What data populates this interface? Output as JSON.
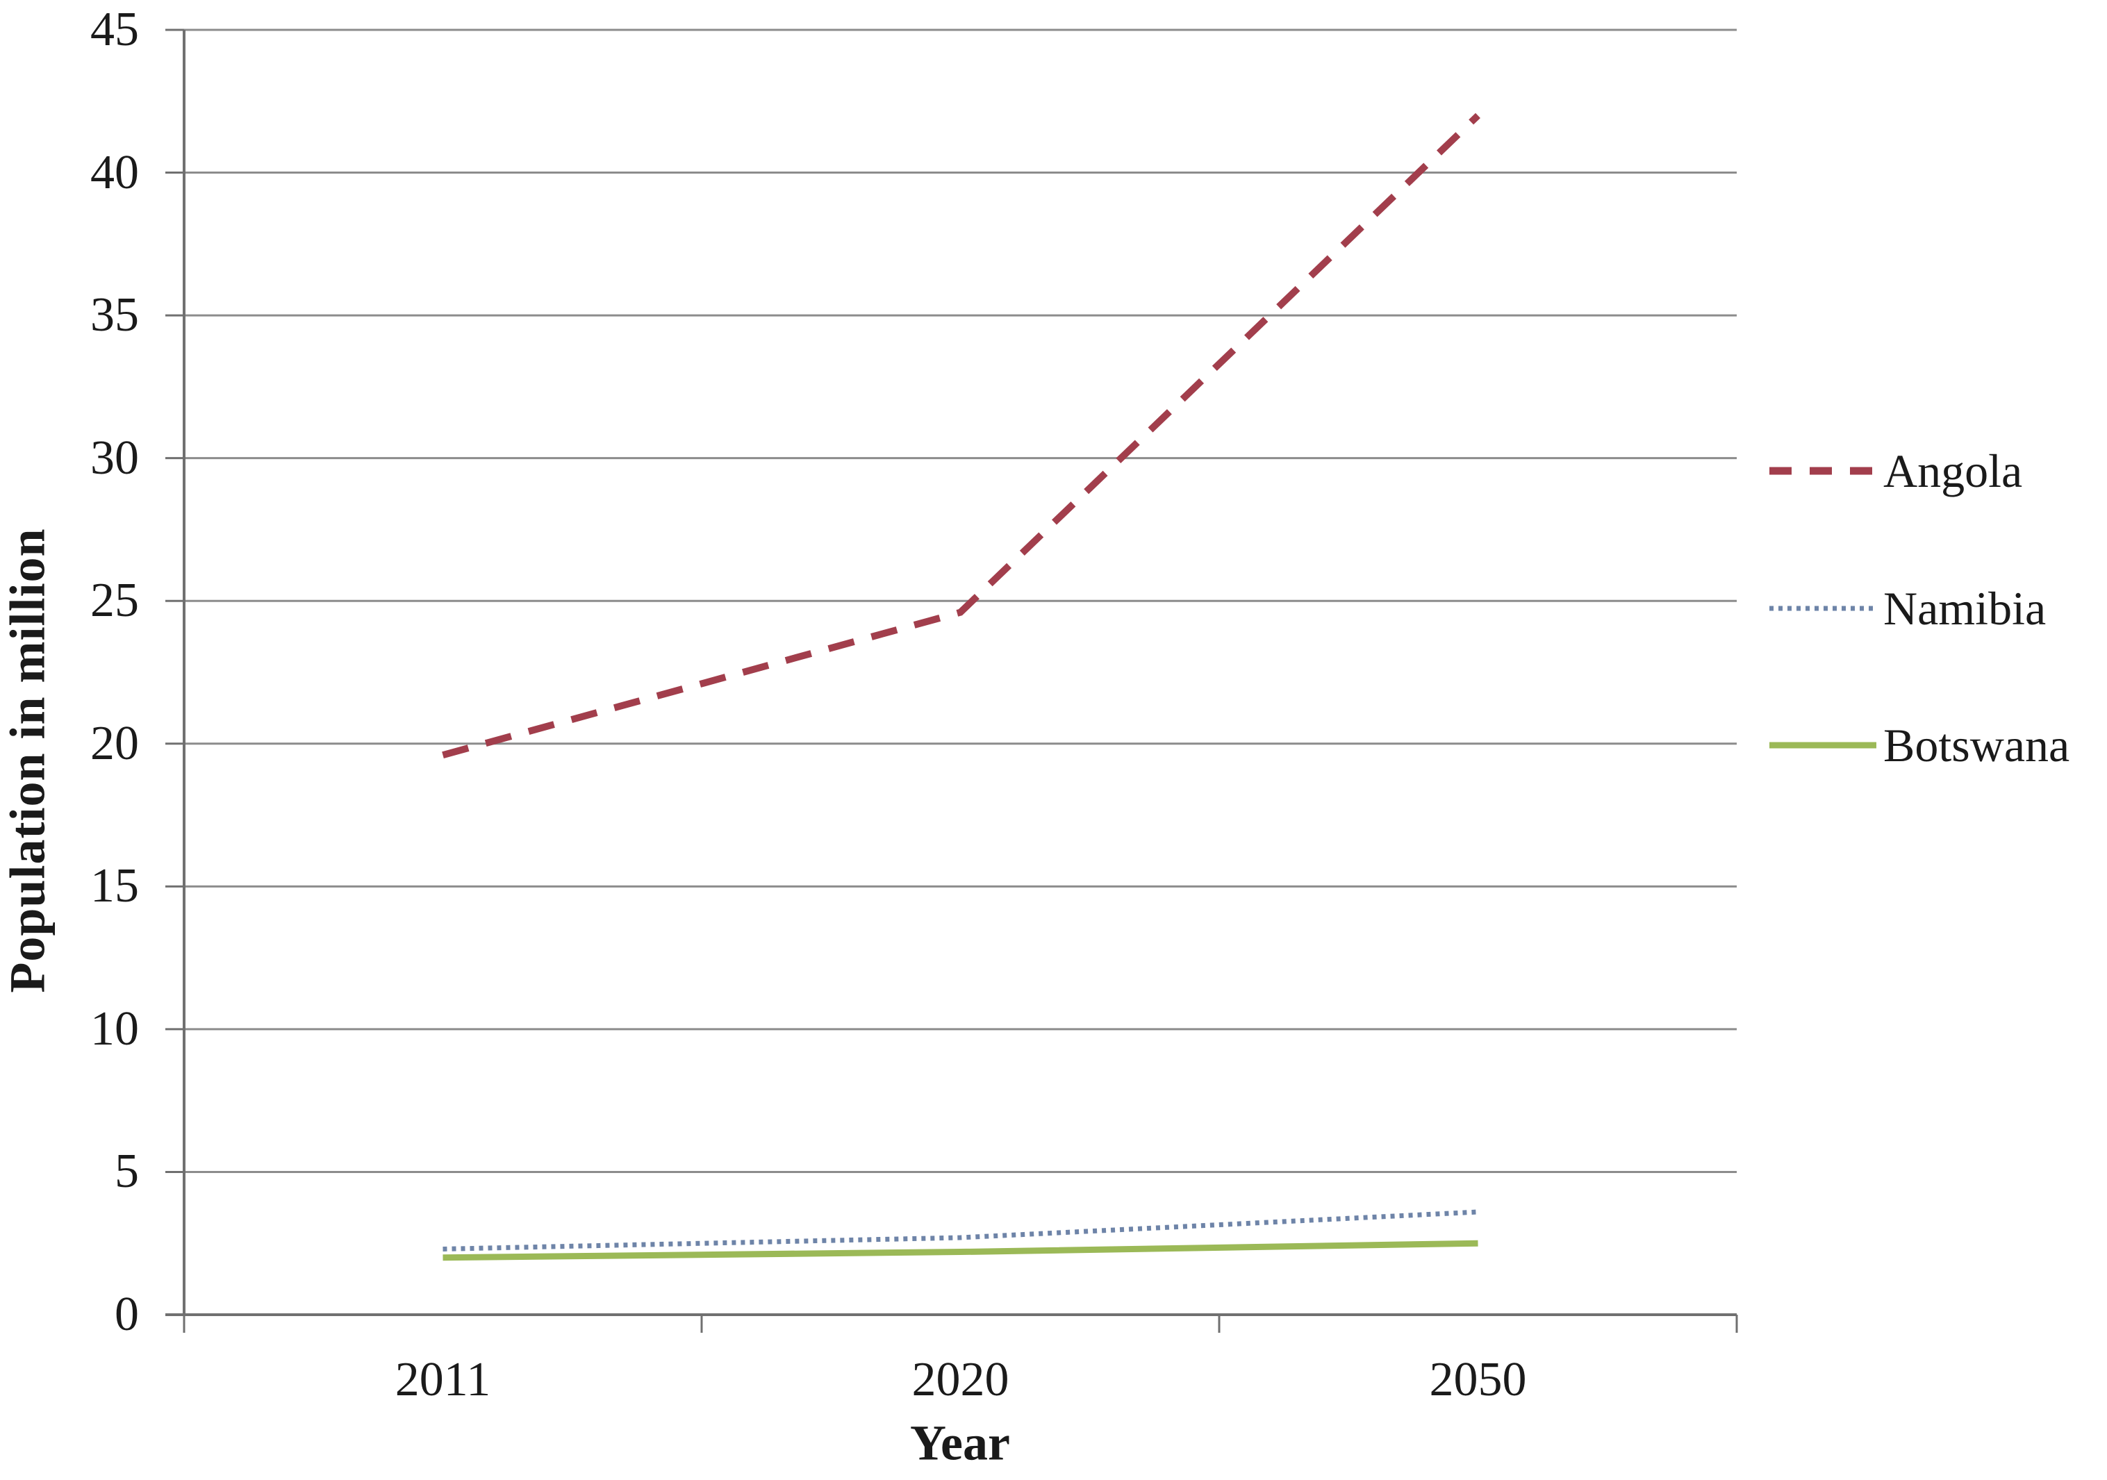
{
  "chart_data": {
    "type": "line",
    "title": "",
    "xlabel": "Year",
    "ylabel": "Population in million",
    "categories": [
      "2011",
      "2020",
      "2050"
    ],
    "series": [
      {
        "name": "Angola",
        "values": [
          19.6,
          24.6,
          42.0
        ],
        "color": "#A23E4C",
        "line_style": "dashed"
      },
      {
        "name": "Namibia",
        "values": [
          2.3,
          2.7,
          3.6
        ],
        "color": "#6E84A8",
        "line_style": "dotted"
      },
      {
        "name": "Botswana",
        "values": [
          2.0,
          2.2,
          2.5
        ],
        "color": "#9BB957",
        "line_style": "solid"
      }
    ],
    "ylim": [
      0,
      45
    ],
    "yticks": [
      0,
      5,
      10,
      15,
      20,
      25,
      30,
      35,
      40,
      45
    ],
    "grid": "horizontal-gridlines",
    "legend_position": "right-outside",
    "gridline_color": "#8C8C8C",
    "axis_color": "#707070"
  }
}
